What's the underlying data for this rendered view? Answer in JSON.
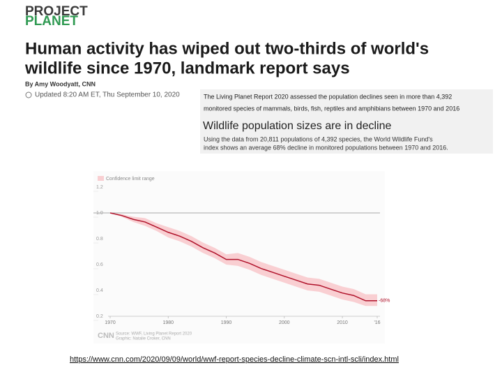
{
  "logo": {
    "top": "PROJECT",
    "bottom": "PLANET"
  },
  "headline": [
    "Human activity has wiped out two-thirds of world's",
    "wildlife since 1970, landmark report says"
  ],
  "byline": "By Amy Woodyatt, CNN",
  "updated": "Updated 8:20 AM ET, Thu September 10, 2020",
  "caption": [
    "The Living Planet Report 2020 assessed the population declines seen in more than 4,392",
    "monitored species of mammals, birds, fish, reptiles and amphibians between 1970 and 2016"
  ],
  "url": "https://www.cnn.com/2020/09/09/world/wwf-report-species-decline-climate-scn-intl-scli/index.html",
  "chart_data": {
    "type": "line",
    "title": "Wildlife population sizes are in decline",
    "subtitle": [
      "Using the data from 20,811 populations of 4,392 species, the World Wildlife Fund's",
      "index shows an average 68% decline in monitored populations between 1970 and 2016."
    ],
    "x": [
      1970,
      1972,
      1974,
      1976,
      1978,
      1980,
      1982,
      1984,
      1986,
      1988,
      1990,
      1992,
      1994,
      1996,
      1998,
      2000,
      2002,
      2004,
      2006,
      2008,
      2010,
      2012,
      2014,
      2016
    ],
    "values": [
      1.0,
      0.98,
      0.95,
      0.93,
      0.89,
      0.85,
      0.82,
      0.78,
      0.73,
      0.69,
      0.64,
      0.64,
      0.61,
      0.57,
      0.54,
      0.51,
      0.48,
      0.45,
      0.44,
      0.41,
      0.38,
      0.36,
      0.32,
      0.32
    ],
    "color": "#b0122a",
    "band": {
      "name": "Confidence limit range",
      "color": "#f9cfd2",
      "upper": [
        1.0,
        0.99,
        0.97,
        0.96,
        0.92,
        0.89,
        0.86,
        0.82,
        0.77,
        0.73,
        0.68,
        0.69,
        0.66,
        0.62,
        0.59,
        0.56,
        0.53,
        0.5,
        0.49,
        0.46,
        0.43,
        0.41,
        0.37,
        0.37
      ],
      "lower": [
        1.0,
        0.97,
        0.93,
        0.9,
        0.86,
        0.81,
        0.78,
        0.74,
        0.69,
        0.65,
        0.6,
        0.59,
        0.56,
        0.52,
        0.49,
        0.46,
        0.43,
        0.4,
        0.39,
        0.36,
        0.33,
        0.31,
        0.28,
        0.28
      ]
    },
    "end_label": "-68%",
    "xlim": [
      1970,
      2016
    ],
    "xticks": [
      1970,
      1980,
      1990,
      2000,
      2010,
      {
        "value": 2016,
        "label": "'16"
      }
    ],
    "ylim": [
      0.2,
      1.2
    ],
    "yticks": [
      1.2,
      {
        "value": 1.0,
        "label": "1.0"
      },
      0.8,
      0.6,
      0.4,
      0.2
    ],
    "baseline": {
      "value": 1.0,
      "label": "1.0"
    },
    "source": [
      "Source: WWF, Living Planet Report 2020",
      "Graphic: Natalie Croker, CNN"
    ],
    "brand": "CNN"
  }
}
